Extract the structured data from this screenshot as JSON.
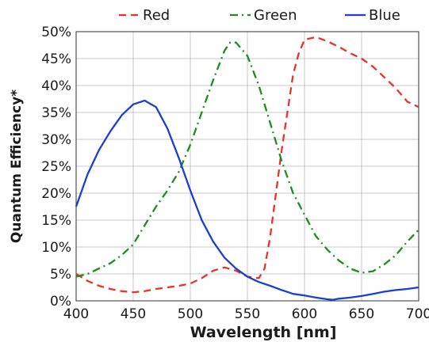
{
  "chart_data": {
    "type": "line",
    "title": "",
    "xlabel": "Wavelength [nm]",
    "ylabel": "Quantum Efficiency*",
    "xlim": [
      400,
      700
    ],
    "ylim": [
      0,
      50
    ],
    "grid": true,
    "legend_position": "top",
    "x_ticks": [
      "400",
      "450",
      "500",
      "550",
      "600",
      "650",
      "700"
    ],
    "y_ticks": [
      "0%",
      "5%",
      "10%",
      "15%",
      "20%",
      "25%",
      "30%",
      "35%",
      "40%",
      "45%",
      "50%"
    ],
    "series": [
      {
        "name": "Red",
        "color": "#e8332a",
        "dash": "dashed",
        "points": [
          [
            400,
            5
          ],
          [
            410,
            3.7
          ],
          [
            420,
            2.8
          ],
          [
            430,
            2.2
          ],
          [
            440,
            1.8
          ],
          [
            450,
            1.6
          ],
          [
            460,
            1.8
          ],
          [
            470,
            2.2
          ],
          [
            480,
            2.5
          ],
          [
            490,
            2.8
          ],
          [
            500,
            3.2
          ],
          [
            510,
            4.2
          ],
          [
            520,
            5.6
          ],
          [
            530,
            6.2
          ],
          [
            540,
            5.6
          ],
          [
            550,
            4.5
          ],
          [
            560,
            4.2
          ],
          [
            565,
            6
          ],
          [
            570,
            12
          ],
          [
            575,
            20
          ],
          [
            580,
            28
          ],
          [
            585,
            35
          ],
          [
            590,
            42
          ],
          [
            595,
            46
          ],
          [
            600,
            48.5
          ],
          [
            610,
            49
          ],
          [
            620,
            48.2
          ],
          [
            630,
            47.2
          ],
          [
            640,
            46
          ],
          [
            650,
            45
          ],
          [
            660,
            43.5
          ],
          [
            670,
            41.5
          ],
          [
            680,
            39.5
          ],
          [
            690,
            37
          ],
          [
            700,
            36
          ]
        ]
      },
      {
        "name": "Green",
        "color": "#1e8c1e",
        "dash": "dashdot",
        "points": [
          [
            400,
            4.5
          ],
          [
            410,
            5
          ],
          [
            420,
            6
          ],
          [
            430,
            7
          ],
          [
            440,
            8.5
          ],
          [
            450,
            10.5
          ],
          [
            460,
            14
          ],
          [
            470,
            17.5
          ],
          [
            480,
            20.5
          ],
          [
            490,
            24
          ],
          [
            500,
            29
          ],
          [
            510,
            35
          ],
          [
            520,
            41
          ],
          [
            530,
            46.5
          ],
          [
            535,
            48
          ],
          [
            540,
            48
          ],
          [
            550,
            45.5
          ],
          [
            560,
            40
          ],
          [
            570,
            33
          ],
          [
            580,
            26
          ],
          [
            590,
            20
          ],
          [
            600,
            16
          ],
          [
            610,
            12
          ],
          [
            620,
            9.5
          ],
          [
            630,
            7.5
          ],
          [
            640,
            6
          ],
          [
            650,
            5.2
          ],
          [
            660,
            5.5
          ],
          [
            670,
            6.8
          ],
          [
            680,
            8.5
          ],
          [
            690,
            11
          ],
          [
            700,
            13.2
          ]
        ]
      },
      {
        "name": "Blue",
        "color": "#1a3fd6",
        "dash": "solid",
        "points": [
          [
            400,
            17.5
          ],
          [
            410,
            23.5
          ],
          [
            420,
            28
          ],
          [
            430,
            31.5
          ],
          [
            440,
            34.5
          ],
          [
            450,
            36.5
          ],
          [
            460,
            37.2
          ],
          [
            470,
            36
          ],
          [
            480,
            32
          ],
          [
            490,
            26.5
          ],
          [
            500,
            20.5
          ],
          [
            510,
            15
          ],
          [
            520,
            11
          ],
          [
            530,
            8
          ],
          [
            540,
            6
          ],
          [
            550,
            4.5
          ],
          [
            560,
            3.5
          ],
          [
            570,
            2.8
          ],
          [
            580,
            2
          ],
          [
            590,
            1.3
          ],
          [
            600,
            1
          ],
          [
            610,
            0.6
          ],
          [
            620,
            0.3
          ],
          [
            625,
            0.2
          ],
          [
            630,
            0.4
          ],
          [
            640,
            0.6
          ],
          [
            650,
            0.9
          ],
          [
            660,
            1.3
          ],
          [
            670,
            1.7
          ],
          [
            680,
            2
          ],
          [
            690,
            2.2
          ],
          [
            700,
            2.5
          ]
        ]
      }
    ]
  }
}
